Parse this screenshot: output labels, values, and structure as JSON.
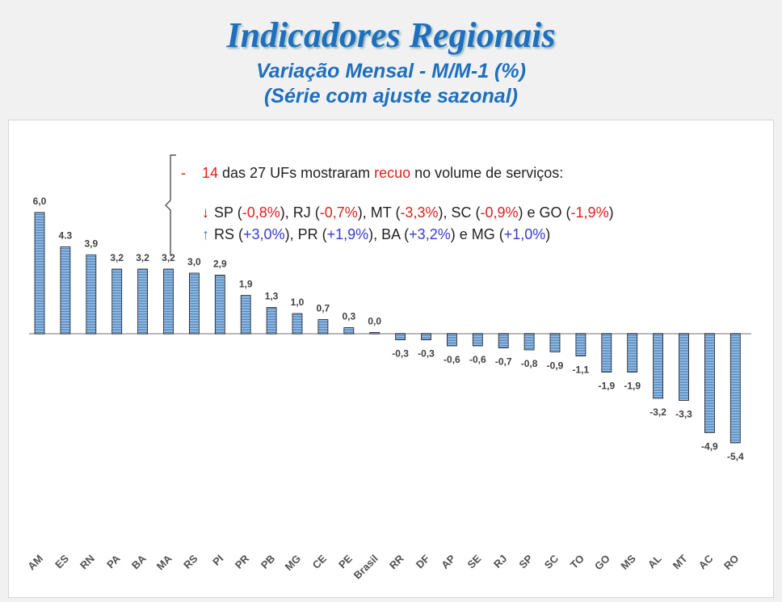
{
  "title": "Indicadores Regionais",
  "subtitle_1": "Variação Mensal - M/M-1 (%)",
  "subtitle_2": "(Série com ajuste sazonal)",
  "note": {
    "dash": "-",
    "count": "14",
    "text_1": " das 27 UFs mostraram ",
    "recuo": "recuo",
    "text_2": " no volume de serviços:",
    "down_icon": "red-down-arrow-icon",
    "up_icon": "blue-up-arrow-icon",
    "down_line": [
      {
        "uf": "SP",
        "val": "-0,8%",
        "sep": "), "
      },
      {
        "uf": "RJ",
        "val": "-0,7%",
        "sep": "), "
      },
      {
        "uf": "MT",
        "val": "-3,3%",
        "sep": "), "
      },
      {
        "uf": "SC",
        "val": "-0,9%",
        "sep": ") e "
      },
      {
        "uf": "GO",
        "val": "-1,9%",
        "sep": ")"
      }
    ],
    "up_line": [
      {
        "uf": "RS",
        "val": "+3,0%",
        "sep": "), "
      },
      {
        "uf": "PR",
        "val": "+1,9%",
        "sep": "), "
      },
      {
        "uf": "BA",
        "val": "+3,2%",
        "sep": ") e "
      },
      {
        "uf": "MG",
        "val": "+1,0%",
        "sep": ")"
      }
    ]
  },
  "colors": {
    "title": "#1f6fc0",
    "bar": "#9cc3e6",
    "negative_text": "#e02020",
    "positive_text": "#3a3ad0"
  },
  "chart_data": {
    "type": "bar",
    "categories": [
      "AM",
      "ES",
      "RN",
      "PA",
      "BA",
      "MA",
      "RS",
      "PI",
      "PR",
      "PB",
      "MG",
      "CE",
      "PE",
      "Brasil",
      "RR",
      "DF",
      "AP",
      "SE",
      "RJ",
      "SP",
      "SC",
      "TO",
      "GO",
      "MS",
      "AL",
      "MT",
      "AC",
      "RO"
    ],
    "values": [
      6.0,
      4.3,
      3.9,
      3.2,
      3.2,
      3.2,
      3.0,
      2.9,
      1.9,
      1.3,
      1.0,
      0.7,
      0.3,
      0.0,
      -0.3,
      -0.3,
      -0.6,
      -0.6,
      -0.7,
      -0.8,
      -0.9,
      -1.1,
      -1.9,
      -1.9,
      -3.2,
      -3.3,
      -4.9,
      -5.4
    ],
    "data_labels": [
      "6,0",
      "4.3",
      "3,9",
      "3,2",
      "3,2",
      "3,2",
      "3,0",
      "2,9",
      "1,9",
      "1,3",
      "1,0",
      "0,7",
      "0,3",
      "0,0",
      "-0,3",
      "-0,3",
      "-0,6",
      "-0,6",
      "-0,7",
      "-0,8",
      "-0,9",
      "-1,1",
      "-1,9",
      "-1,9",
      "-3,2",
      "-3,3",
      "-4,9",
      "-5,4"
    ],
    "grid": false,
    "legend": false
  }
}
